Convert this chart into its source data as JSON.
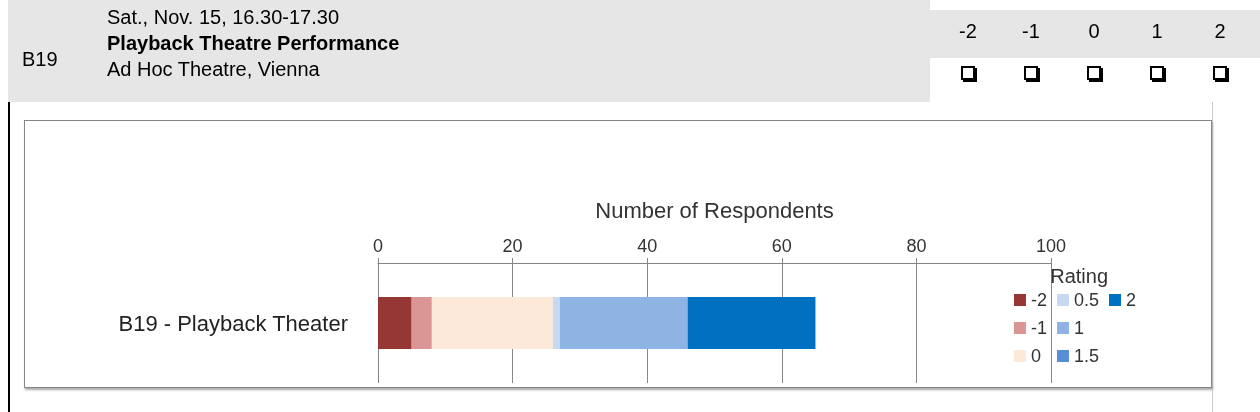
{
  "chart_data": {
    "type": "bar",
    "orientation": "horizontal",
    "stacked": true,
    "title": "Playback Theatre Performance",
    "subtitle": "Sat., Nov. 15, 16.30-17.30",
    "annotations": [
      "B19",
      "Ad Hoc Theatre, Vienna",
      "-2",
      "-1",
      "0",
      "1",
      "2"
    ],
    "xlabel": "Number of Respondents",
    "legend_title": "Rating",
    "categories": [
      "B19 - Playback Theater"
    ],
    "series": [
      {
        "name": "-2",
        "color": "#953735",
        "values": [
          5
        ]
      },
      {
        "name": "-1",
        "color": "#d99694",
        "values": [
          3
        ]
      },
      {
        "name": "0",
        "color": "#fde9d9",
        "values": [
          18
        ]
      },
      {
        "name": "0.5",
        "color": "#c6d9f1",
        "values": [
          1
        ]
      },
      {
        "name": "1",
        "color": "#8eb4e3",
        "values": [
          19
        ]
      },
      {
        "name": "1.5",
        "color": "#558ed5",
        "values": [
          0
        ]
      },
      {
        "name": "2",
        "color": "#0070c0",
        "values": [
          19
        ]
      }
    ],
    "xlim": [
      0,
      100
    ],
    "xticks": [
      0,
      20,
      40,
      60,
      80,
      100
    ],
    "grid": "x",
    "legend": "right"
  }
}
